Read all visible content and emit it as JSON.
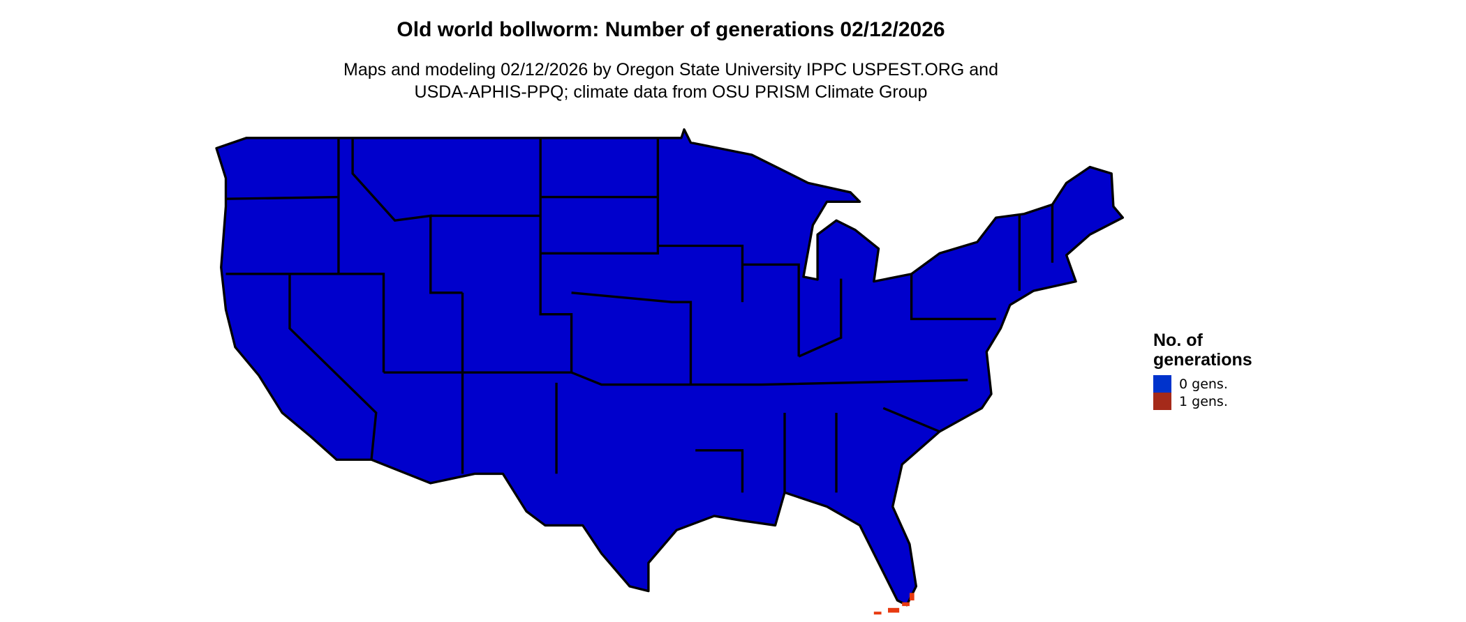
{
  "title": "Old world bollworm: Number of generations 02/12/2026",
  "subtitle_lines": [
    "Maps and modeling 02/12/2026 by Oregon State University IPPC USPEST.ORG and",
    "USDA-APHIS-PPQ; climate data from OSU PRISM Climate Group"
  ],
  "legend": {
    "title_lines": [
      "No. of",
      "generations"
    ],
    "items": [
      {
        "label": "0 gens.",
        "color": "#0033CC"
      },
      {
        "label": "1 gens.",
        "color": "#A52A1A"
      }
    ]
  },
  "map": {
    "region": "Contiguous United States",
    "fill_color": "#0000CC",
    "highlight_color": "#E83A10",
    "highlight_area": "Florida Keys (1 gens.)"
  }
}
